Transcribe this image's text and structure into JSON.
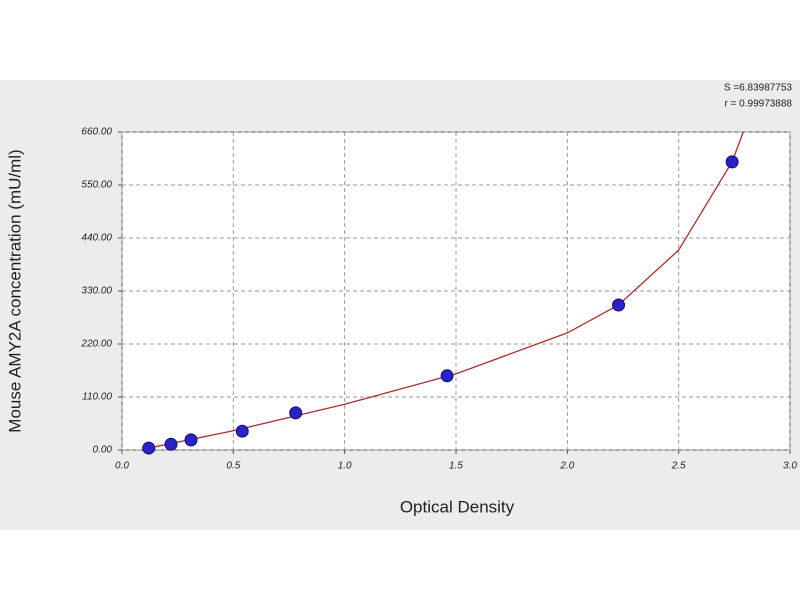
{
  "chart_data": {
    "type": "scatter",
    "x_label": "Optical Density",
    "y_label": "Mouse AMY2A concentration (mU/ml)",
    "annotations": [
      "S =6.83987753",
      "r = 0.99973888"
    ],
    "x": [
      0.12,
      0.22,
      0.31,
      0.54,
      0.78,
      1.46,
      2.23,
      2.74
    ],
    "series": [
      {
        "name": "standards",
        "color": "#2a22c8",
        "values": [
          4,
          12,
          21,
          39,
          77,
          154,
          301,
          598
        ]
      }
    ],
    "fit": {
      "color": "#a83232",
      "x": [
        0.12,
        0.5,
        1.0,
        1.5,
        2.0,
        2.23,
        2.5,
        2.74,
        2.79
      ],
      "values": [
        4,
        40,
        95,
        158,
        243,
        301,
        415,
        598,
        660
      ]
    },
    "xlim": [
      0,
      3
    ],
    "ylim": [
      0,
      660
    ],
    "xticks": [
      {
        "value": 0,
        "label": "0.0"
      },
      0.5,
      {
        "value": 1,
        "label": "1.0"
      },
      1.5,
      {
        "value": 2,
        "label": "2.0"
      },
      2.5,
      {
        "value": 3,
        "label": "3.0"
      }
    ],
    "yticks": [
      {
        "value": 0,
        "label": "0.00"
      },
      {
        "value": 110,
        "label": "110.00"
      },
      {
        "value": 220,
        "label": "220.00"
      },
      {
        "value": 330,
        "label": "330.00"
      },
      {
        "value": 440,
        "label": "440.00"
      },
      {
        "value": 550,
        "label": "550.00"
      },
      {
        "value": 660,
        "label": "660.00"
      }
    ],
    "grid": true
  }
}
